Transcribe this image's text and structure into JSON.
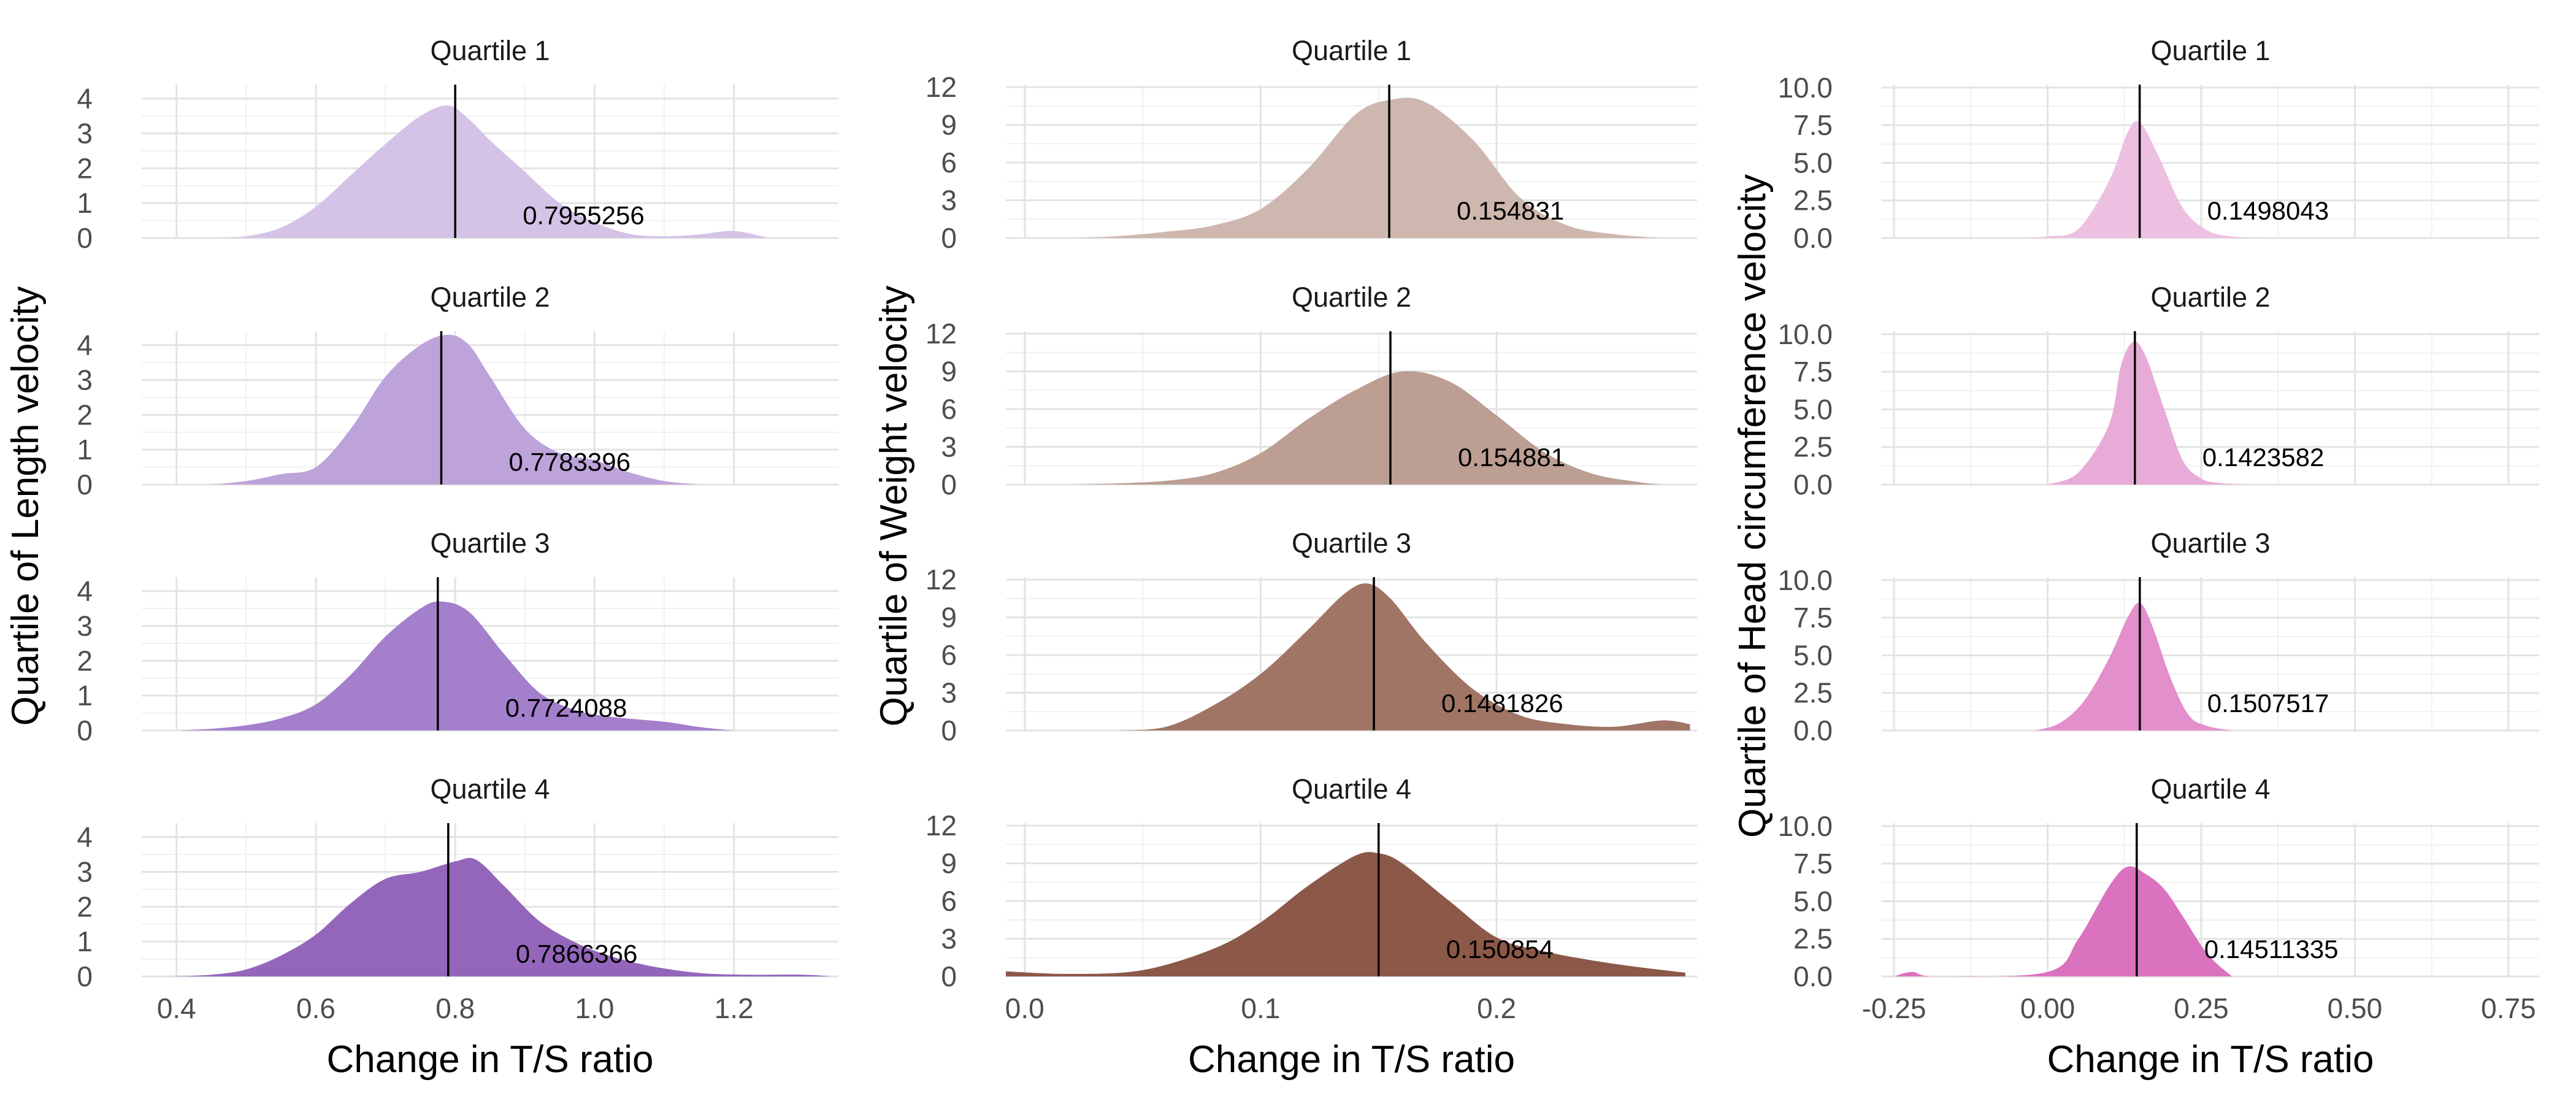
{
  "chart_data": [
    {
      "type": "area",
      "ylabel": "Quartile of Length velocity",
      "xlabel": "Change in T/S ratio",
      "xlim": [
        0.35,
        1.35
      ],
      "xticks": [
        "0.4",
        "0.6",
        "0.8",
        "1.0",
        "1.2"
      ],
      "xtick_values": [
        0.4,
        0.6,
        0.8,
        1.0,
        1.2
      ],
      "ylim": [
        0,
        4.4
      ],
      "yticks": [
        "0",
        "1",
        "2",
        "3",
        "4"
      ],
      "ytick_values": [
        0,
        1,
        2,
        3,
        4
      ],
      "panels": [
        {
          "title": "Quartile 1",
          "color": "#d4c3e6",
          "median": 0.8,
          "label": "0.7955256",
          "label_y": 0.95,
          "x": [
            0.45,
            0.5,
            0.55,
            0.6,
            0.65,
            0.7,
            0.75,
            0.79,
            0.82,
            0.85,
            0.9,
            0.95,
            1.0,
            1.05,
            1.1,
            1.15,
            1.2,
            1.25
          ],
          "y": [
            0,
            0.05,
            0.3,
            0.9,
            1.8,
            2.7,
            3.5,
            3.8,
            3.4,
            2.8,
            1.9,
            1.0,
            0.45,
            0.12,
            0.05,
            0.1,
            0.2,
            0
          ]
        },
        {
          "title": "Quartile 2",
          "color": "#bda3da",
          "median": 0.78,
          "label": "0.7783396",
          "label_y": 0.95,
          "x": [
            0.45,
            0.5,
            0.55,
            0.6,
            0.65,
            0.7,
            0.75,
            0.79,
            0.82,
            0.85,
            0.9,
            0.95,
            1.0,
            1.05,
            1.1,
            1.15
          ],
          "y": [
            0,
            0.1,
            0.3,
            0.5,
            1.6,
            3.1,
            4.0,
            4.3,
            4.0,
            3.1,
            1.6,
            0.9,
            0.7,
            0.35,
            0.1,
            0
          ]
        },
        {
          "title": "Quartile 3",
          "color": "#a47fcc",
          "median": 0.775,
          "label": "0.7724088",
          "label_y": 0.95,
          "x": [
            0.4,
            0.45,
            0.5,
            0.55,
            0.6,
            0.65,
            0.7,
            0.75,
            0.78,
            0.82,
            0.87,
            0.92,
            0.97,
            1.02,
            1.1,
            1.15,
            1.2
          ],
          "y": [
            0,
            0.05,
            0.15,
            0.35,
            0.75,
            1.6,
            2.7,
            3.5,
            3.7,
            3.4,
            2.2,
            1.1,
            0.6,
            0.4,
            0.25,
            0.1,
            0
          ]
        },
        {
          "title": "Quartile 4",
          "color": "#9466bb",
          "median": 0.79,
          "label": "0.7866366",
          "label_y": 0.95,
          "x": [
            0.39,
            0.45,
            0.5,
            0.55,
            0.6,
            0.65,
            0.7,
            0.75,
            0.8,
            0.83,
            0.87,
            0.92,
            0.97,
            1.02,
            1.08,
            1.15,
            1.22,
            1.3,
            1.34
          ],
          "y": [
            0,
            0.05,
            0.2,
            0.6,
            1.2,
            2.1,
            2.8,
            3.0,
            3.3,
            3.35,
            2.6,
            1.6,
            1.0,
            0.6,
            0.3,
            0.1,
            0.05,
            0.05,
            0
          ]
        }
      ]
    },
    {
      "type": "area",
      "ylabel": "Quartile of Weight velocity",
      "xlabel": "Change in T/S ratio",
      "xlim": [
        -0.008,
        0.285
      ],
      "xticks": [
        "0.0",
        "0.1",
        "0.2"
      ],
      "xtick_values": [
        0.0,
        0.1,
        0.2
      ],
      "ylim": [
        0,
        12.2
      ],
      "yticks": [
        "0",
        "3",
        "6",
        "9",
        "12"
      ],
      "ytick_values": [
        0,
        3,
        6,
        9,
        12
      ],
      "panels": [
        {
          "title": "Quartile 1",
          "color": "#ceb7ae",
          "median": 0.1545,
          "label": "0.154831",
          "label_y": 0.9,
          "x": [
            0.02,
            0.04,
            0.06,
            0.08,
            0.1,
            0.12,
            0.14,
            0.155,
            0.17,
            0.19,
            0.21,
            0.23,
            0.25,
            0.27
          ],
          "y": [
            0,
            0.15,
            0.5,
            1.0,
            2.3,
            5.5,
            9.8,
            11.0,
            10.8,
            7.8,
            3.2,
            1.0,
            0.3,
            0
          ]
        },
        {
          "title": "Quartile 2",
          "color": "#bc9e93",
          "median": 0.155,
          "label": "0.154881",
          "label_y": 0.9,
          "x": [
            0.02,
            0.04,
            0.06,
            0.08,
            0.1,
            0.12,
            0.14,
            0.16,
            0.18,
            0.2,
            0.22,
            0.24,
            0.26,
            0.27
          ],
          "y": [
            0,
            0.1,
            0.3,
            0.9,
            2.5,
            5.2,
            7.5,
            9.0,
            8.2,
            5.5,
            2.6,
            0.9,
            0.2,
            0
          ]
        },
        {
          "title": "Quartile 3",
          "color": "#a07565",
          "median": 0.148,
          "label": "0.1481826",
          "label_y": 0.9,
          "x": [
            0.04,
            0.06,
            0.08,
            0.1,
            0.12,
            0.135,
            0.145,
            0.155,
            0.17,
            0.19,
            0.21,
            0.23,
            0.25,
            0.27,
            0.282
          ],
          "y": [
            0,
            0.3,
            2.0,
            4.5,
            8.0,
            10.8,
            11.7,
            10.5,
            7.0,
            3.3,
            1.2,
            0.5,
            0.3,
            0.8,
            0.5
          ]
        },
        {
          "title": "Quartile 4",
          "color": "#8c5848",
          "median": 0.15,
          "label": "0.150854",
          "label_y": 0.9,
          "x": [
            -0.008,
            0.02,
            0.05,
            0.08,
            0.1,
            0.12,
            0.14,
            0.15,
            0.16,
            0.18,
            0.2,
            0.22,
            0.25,
            0.28
          ],
          "y": [
            0.4,
            0.2,
            0.5,
            2.2,
            4.3,
            7.2,
            9.6,
            9.8,
            9.0,
            6.0,
            3.1,
            2.0,
            1.0,
            0.3
          ]
        }
      ]
    },
    {
      "type": "area",
      "ylabel": "Quartile of Head circumference velocity",
      "xlabel": "Change in T/S ratio",
      "xlim": [
        -0.27,
        0.8
      ],
      "xticks": [
        "-0.25",
        "0.00",
        "0.25",
        "0.50",
        "0.75"
      ],
      "xtick_values": [
        -0.25,
        0.0,
        0.25,
        0.5,
        0.75
      ],
      "ylim": [
        0,
        10.2
      ],
      "yticks": [
        "0.0",
        "2.5",
        "5.0",
        "7.5",
        "10.0"
      ],
      "ytick_values": [
        0,
        2.5,
        5.0,
        7.5,
        10.0
      ],
      "panels": [
        {
          "title": "Quartile 1",
          "color": "#edc0e2",
          "median": 0.1498,
          "label": "0.1498043",
          "label_y": 0.9,
          "x": [
            -0.05,
            0.0,
            0.05,
            0.1,
            0.13,
            0.15,
            0.18,
            0.22,
            0.26,
            0.3,
            0.35
          ],
          "y": [
            0,
            0.1,
            0.6,
            3.8,
            7.0,
            7.7,
            5.5,
            2.0,
            0.5,
            0.1,
            0
          ]
        },
        {
          "title": "Quartile 2",
          "color": "#e8abd8",
          "median": 0.142,
          "label": "0.1423582",
          "label_y": 0.9,
          "x": [
            0.0,
            0.05,
            0.1,
            0.12,
            0.14,
            0.16,
            0.19,
            0.22,
            0.25,
            0.28,
            0.32
          ],
          "y": [
            0,
            0.8,
            4.0,
            8.0,
            9.5,
            8.5,
            5.0,
            1.6,
            0.4,
            0.1,
            0
          ]
        },
        {
          "title": "Quartile 3",
          "color": "#e28fcc",
          "median": 0.15,
          "label": "0.1507517",
          "label_y": 0.9,
          "x": [
            -0.02,
            0.02,
            0.06,
            0.1,
            0.13,
            0.15,
            0.17,
            0.2,
            0.23,
            0.26,
            0.3
          ],
          "y": [
            0,
            0.5,
            2.0,
            4.8,
            7.5,
            8.5,
            7.0,
            3.5,
            1.0,
            0.3,
            0
          ]
        },
        {
          "title": "Quartile 4",
          "color": "#db72bf",
          "median": 0.145,
          "label": "0.14511335",
          "label_y": 0.9,
          "x": [
            -0.25,
            -0.22,
            -0.18,
            0.0,
            0.05,
            0.1,
            0.13,
            0.16,
            0.19,
            0.22,
            0.26,
            0.3
          ],
          "y": [
            0,
            0.3,
            0,
            0.3,
            2.5,
            6.0,
            7.3,
            6.8,
            5.8,
            4.0,
            1.5,
            0
          ]
        }
      ]
    }
  ]
}
